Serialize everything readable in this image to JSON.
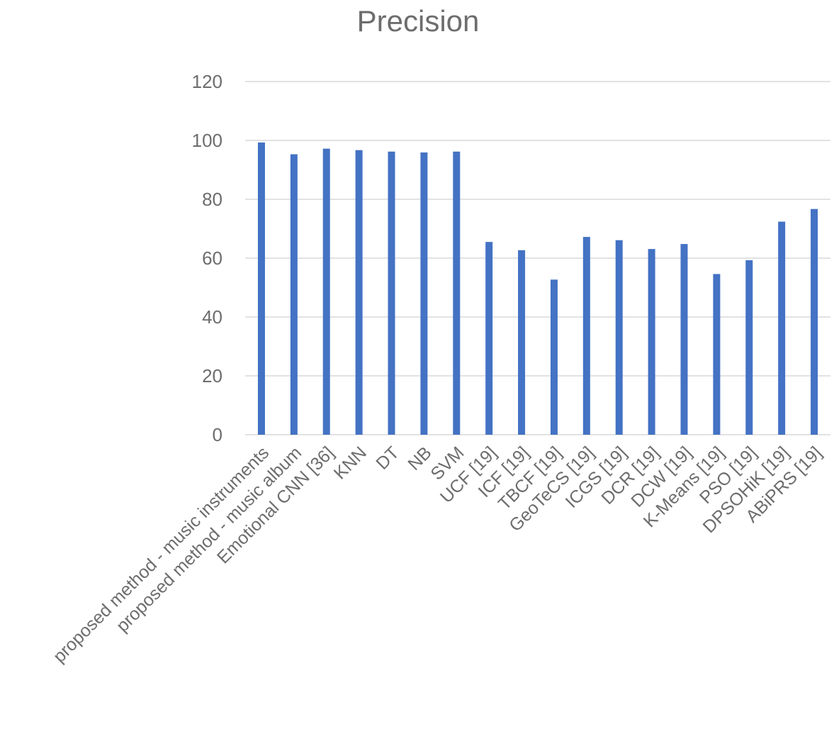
{
  "chart_data": {
    "type": "bar",
    "title": "Precision",
    "xlabel": "",
    "ylabel": "",
    "ylim": [
      0,
      120
    ],
    "yticks": [
      0,
      20,
      40,
      60,
      80,
      100,
      120
    ],
    "grid": true,
    "legend": "none",
    "bar_color": "#4472c4",
    "categories": [
      "proposed method - music instruments",
      "proposed method - music album",
      "Emotional CNN [36]",
      "KNN",
      "DT",
      "NB",
      "SVM",
      "UCF [19]",
      "ICF [19]",
      "TBCF [19]",
      "GeoTeCS [19]",
      "ICGS  [19]",
      "DCR [19]",
      "DCW [19]",
      "K-Means  [19]",
      "PSO [19]",
      "DPSOHiK [19]",
      "ABiPRS [19]"
    ],
    "series": [
      {
        "values": [
          99.3,
          95.3,
          97.2,
          96.7,
          96.2,
          95.9,
          96.2,
          65.5,
          62.7,
          52.7,
          67.2,
          66.1,
          63.1,
          64.8,
          54.6,
          59.3,
          72.4,
          76.7
        ]
      }
    ]
  }
}
